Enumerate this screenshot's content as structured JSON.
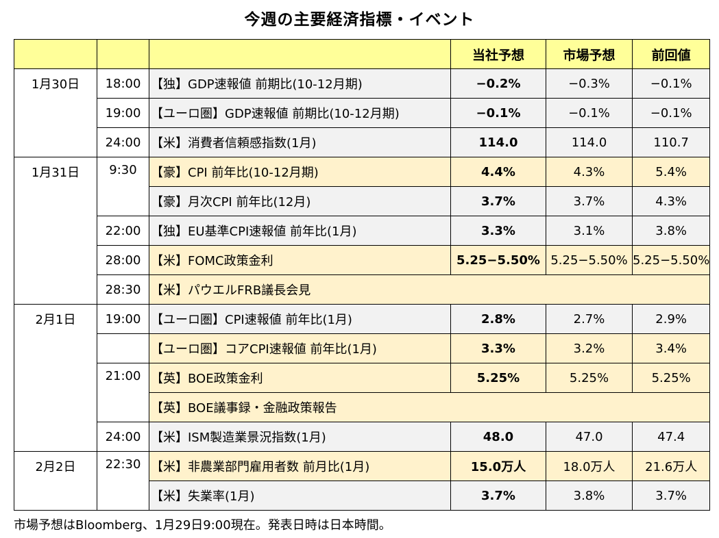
{
  "title": "今週の主要経済指標・イベント",
  "header": {
    "own": "当社予想",
    "market": "市場予想",
    "previous": "前回値"
  },
  "days": [
    {
      "date": "1月30日",
      "rows": [
        {
          "time": "18:00",
          "name": "【独】GDP速報値 前期比(10-12月期)",
          "own": "−0.2%",
          "market": "−0.3%",
          "previous": "−0.1%"
        },
        {
          "time": "19:00",
          "name": "【ユーロ圏】GDP速報値 前期比(10-12月期)",
          "own": "−0.1%",
          "market": "−0.1%",
          "previous": "−0.1%"
        },
        {
          "time": "24:00",
          "name": "【米】消費者信頼感指数(1月)",
          "own": "114.0",
          "market": "114.0",
          "previous": "110.7"
        }
      ]
    },
    {
      "date": "1月31日",
      "rows": [
        {
          "time": "9:30",
          "name": "【豪】CPI 前年比(10-12月期)",
          "own": "4.4%",
          "market": "4.3%",
          "previous": "5.4%"
        },
        {
          "time": "",
          "name": "【豪】月次CPI 前年比(12月)",
          "own": "3.7%",
          "market": "3.7%",
          "previous": "4.3%"
        },
        {
          "time": "22:00",
          "name": "【独】EU基準CPI速報値 前年比(1月)",
          "own": "3.3%",
          "market": "3.1%",
          "previous": "3.8%"
        },
        {
          "time": "28:00",
          "name": "【米】FOMC政策金利",
          "own": "5.25−5.50%",
          "market": "5.25−5.50%",
          "previous": "5.25−5.50%"
        },
        {
          "time": "28:30",
          "name": "【米】パウエルFRB議長会見"
        }
      ]
    },
    {
      "date": "2月1日",
      "rows": [
        {
          "time": "19:00",
          "name": "【ユーロ圏】CPI速報値 前年比(1月)",
          "own": "2.8%",
          "market": "2.7%",
          "previous": "2.9%"
        },
        {
          "time": "",
          "name": "【ユーロ圏】コアCPI速報値 前年比(1月)",
          "own": "3.3%",
          "market": "3.2%",
          "previous": "3.4%"
        },
        {
          "time": "21:00",
          "name": "【英】BOE政策金利",
          "own": "5.25%",
          "market": "5.25%",
          "previous": "5.25%"
        },
        {
          "time": "",
          "name": "【英】BOE議事録・金融政策報告"
        },
        {
          "time": "24:00",
          "name": "【米】ISM製造業景況指数(1月)",
          "own": "48.0",
          "market": "47.0",
          "previous": "47.4"
        }
      ]
    },
    {
      "date": "2月2日",
      "rows": [
        {
          "time": "22:30",
          "name": "【米】非農業部門雇用者数 前月比(1月)",
          "own": "15.0万人",
          "market": "18.0万人",
          "previous": "21.6万人"
        },
        {
          "time": "",
          "name": "【米】失業率(1月)",
          "own": "3.7%",
          "market": "3.8%",
          "previous": "3.7%"
        }
      ]
    }
  ],
  "footnote": "市場予想はBloomberg、1月29日9:00現在。発表日時は日本時間。"
}
